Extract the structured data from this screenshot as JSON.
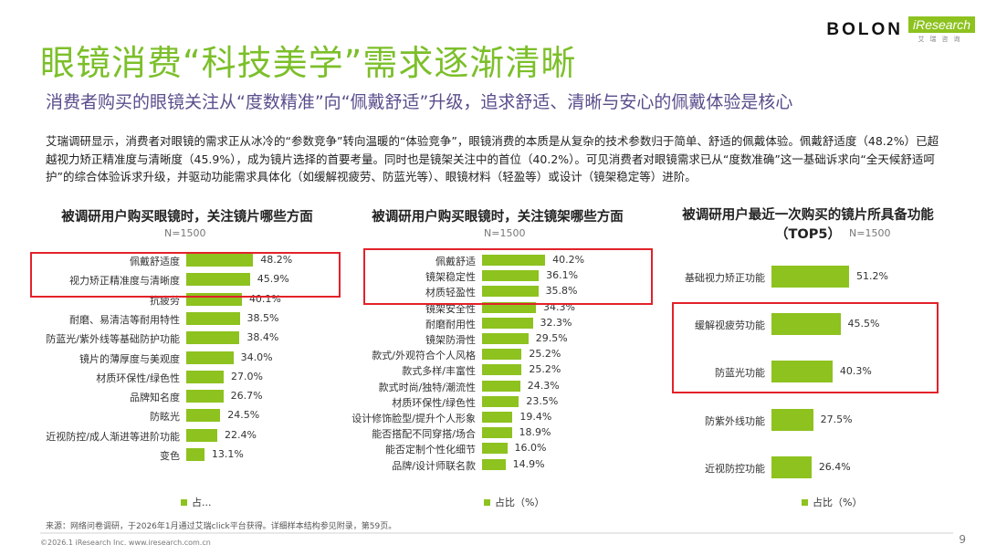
{
  "header": {
    "title": "眼镜消费“科技美学”需求逐渐清晰",
    "subtitle": "消费者购买的眼镜关注从“度数精准”向“佩戴舒适”升级，追求舒适、清晰与安心的佩戴体验是核心",
    "logo_bolon": "BOLON",
    "logo_iresearch": "iResearch",
    "logo_iresearch_cn": "艾瑞咨询"
  },
  "intro": "艾瑞调研显示，消费者对眼镜的需求正从冰冷的“参数竞争”转向温暖的“体验竞争”，眼镜消费的本质是从复杂的技术参数归于简单、舒适的佩戴体验。佩戴舒适度（48.2%）已超越视力矫正精准度与清晰度（45.9%），成为镜片选择的首要考量。同时也是镜架关注中的首位（40.2%）。可见消费者对眼镜需求已从“度数准确”这一基础诉求向“全天候舒适呵护”的综合体验诉求升级，并驱动功能需求具体化（如缓解视疲劳、防蓝光等）、眼镜材料（轻盈等）或设计（镜架稳定等）进阶。",
  "colors": {
    "accent": "#7cbf2a",
    "bar": "#8dc21f",
    "highlight": "#e2222a"
  },
  "chart_data": [
    {
      "type": "bar",
      "orientation": "horizontal",
      "title": "被调研用户购买眼镜时，关注镜片哪些方面",
      "n": "N=1500",
      "legend": "占...",
      "unit": "%",
      "categories": [
        "佩戴舒适度",
        "视力矫正精准度与清晰度",
        "抗疲劳",
        "耐磨、易清洁等耐用特性",
        "防蓝光/紫外线等基础防护功能",
        "镜片的薄厚度与美观度",
        "材质环保性/绿色性",
        "品牌知名度",
        "防眩光",
        "近视防控/成人渐进等进阶功能",
        "变色"
      ],
      "values": [
        48.2,
        45.9,
        40.1,
        38.5,
        38.4,
        34.0,
        27.0,
        26.7,
        24.5,
        22.4,
        13.1
      ],
      "highlighted": [
        0,
        1
      ]
    },
    {
      "type": "bar",
      "orientation": "horizontal",
      "title": "被调研用户购买眼镜时，关注镜架哪些方面",
      "n": "N=1500",
      "legend": "占比（%）",
      "unit": "%",
      "categories": [
        "佩戴舒适",
        "镜架稳定性",
        "材质轻盈性",
        "镜架安全性",
        "耐磨耐用性",
        "镜架防滑性",
        "款式/外观符合个人风格",
        "款式多样/丰富性",
        "款式时尚/独特/潮流性",
        "材质环保性/绿色性",
        "设计修饰脸型/提升个人形象",
        "能否搭配不同穿搭/场合",
        "能否定制个性化细节",
        "品牌/设计师联名款"
      ],
      "values": [
        40.2,
        36.1,
        35.8,
        34.3,
        32.3,
        29.5,
        25.2,
        25.2,
        24.3,
        23.5,
        19.4,
        18.9,
        16.0,
        14.9
      ],
      "highlighted": [
        0,
        1,
        2
      ]
    },
    {
      "type": "bar",
      "orientation": "horizontal",
      "title": "被调研用户最近一次购买的镜片所具备功能（TOP5）",
      "n": "N=1500",
      "legend": "占比（%）",
      "unit": "%",
      "categories": [
        "基础视力矫正功能",
        "缓解视疲劳功能",
        "防蓝光功能",
        "防紫外线功能",
        "近视防控功能"
      ],
      "values": [
        51.2,
        45.5,
        40.3,
        27.5,
        26.4
      ],
      "highlighted": [
        1,
        2
      ]
    }
  ],
  "footer": {
    "source": "来源：网络问卷调研，于2026年1月通过艾瑞click平台获得。详细样本结构参见附录，第59页。",
    "copyright": "©2026.1 iResearch Inc.  www.iresearch.com.cn",
    "page": "9"
  }
}
